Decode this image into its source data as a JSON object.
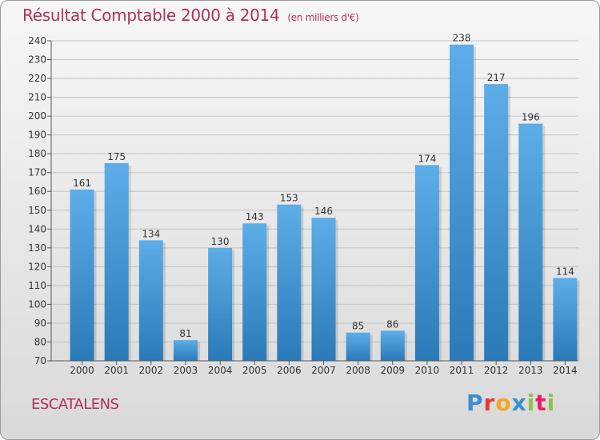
{
  "header": {
    "title": "Résultat Comptable 2000 à 2014",
    "subtitle": "(en milliers d'€)"
  },
  "footer": {
    "commune": "ESCATALENS",
    "logo_letters": [
      "P",
      "r",
      "o",
      "x",
      "i",
      "t",
      "i"
    ],
    "logo_colors": [
      "#3a8fd6",
      "#e53935",
      "#f5a623",
      "#3a8fd6",
      "#8bc34a",
      "#e91e63",
      "#8bc34a"
    ]
  },
  "colors": {
    "title": "#b0305c",
    "bar_top": "#5dade8",
    "bar_bottom": "#2a7ab8"
  },
  "chart_data": {
    "type": "bar",
    "title": "Résultat Comptable 2000 à 2014",
    "subtitle": "(en milliers d'€)",
    "xlabel": "",
    "ylabel": "",
    "categories": [
      "2000",
      "2001",
      "2002",
      "2003",
      "2004",
      "2005",
      "2006",
      "2007",
      "2008",
      "2009",
      "2010",
      "2011",
      "2012",
      "2013",
      "2014"
    ],
    "values": [
      161,
      175,
      134,
      81,
      130,
      143,
      153,
      146,
      85,
      86,
      174,
      238,
      217,
      196,
      114
    ],
    "ylim": [
      70,
      240
    ],
    "yticks": [
      70,
      80,
      90,
      100,
      110,
      120,
      130,
      140,
      150,
      160,
      170,
      180,
      190,
      200,
      210,
      220,
      230,
      240
    ],
    "grid": true,
    "data_labels": true
  }
}
